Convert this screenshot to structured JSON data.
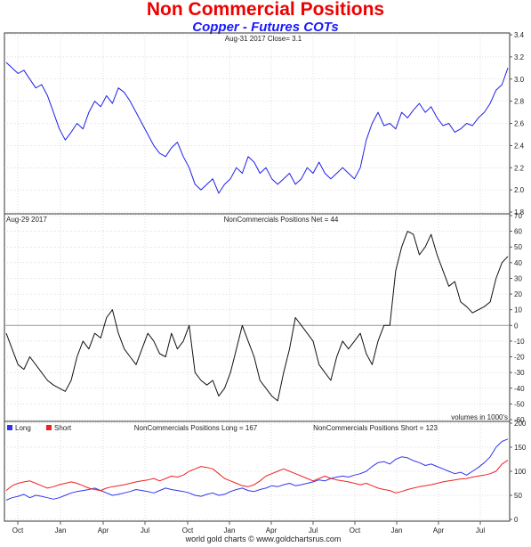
{
  "header": {
    "title": "Non Commercial Positions",
    "subtitle": "Copper - Futures COTs"
  },
  "footer": {
    "credit": "world gold charts © www.goldchartsrus.com"
  },
  "colors": {
    "price": "#1f1fe6",
    "net": "#111111",
    "long": "#3434ee",
    "short": "#ee2222",
    "grid": "#bbbbbb"
  },
  "chart_data": [
    {
      "type": "line",
      "annotation": "Aug-31  2017  Close= 3.1",
      "x_ticks": [
        "Oct",
        "Jan",
        "Apr",
        "Jul",
        "Oct",
        "Jan",
        "Apr",
        "Jul",
        "Oct",
        "Jan",
        "Apr",
        "Jul"
      ],
      "ylim": [
        1.8,
        3.4
      ],
      "y_ticks": [
        1.8,
        2.0,
        2.2,
        2.4,
        2.6,
        2.8,
        3.0,
        3.2,
        3.4
      ],
      "grid": true,
      "series": [
        {
          "values": [
            3.15,
            3.1,
            3.05,
            3.08,
            3.0,
            2.92,
            2.95,
            2.85,
            2.7,
            2.55,
            2.45,
            2.52,
            2.6,
            2.55,
            2.7,
            2.8,
            2.75,
            2.85,
            2.78,
            2.92,
            2.88,
            2.8,
            2.7,
            2.6,
            2.5,
            2.4,
            2.33,
            2.3,
            2.38,
            2.43,
            2.3,
            2.2,
            2.05,
            2.0,
            2.05,
            2.1,
            1.97,
            2.05,
            2.1,
            2.2,
            2.15,
            2.3,
            2.25,
            2.15,
            2.2,
            2.1,
            2.05,
            2.1,
            2.15,
            2.05,
            2.1,
            2.2,
            2.15,
            2.25,
            2.15,
            2.1,
            2.15,
            2.2,
            2.15,
            2.1,
            2.2,
            2.45,
            2.6,
            2.7,
            2.58,
            2.6,
            2.55,
            2.7,
            2.65,
            2.72,
            2.78,
            2.7,
            2.75,
            2.65,
            2.58,
            2.6,
            2.52,
            2.55,
            2.6,
            2.58,
            2.65,
            2.7,
            2.78,
            2.9,
            2.95,
            3.1
          ]
        }
      ]
    },
    {
      "type": "line",
      "annotation_left": "Aug-29  2017",
      "annotation": "NonCommercials Positions Net = 44",
      "note": "volumes in 1000's",
      "ylim": [
        -60,
        70
      ],
      "y_ticks": [
        -60,
        -50,
        -40,
        -30,
        -20,
        -10,
        0,
        10,
        20,
        30,
        40,
        50,
        60,
        70
      ],
      "grid": true,
      "series": [
        {
          "values": [
            -5,
            -15,
            -25,
            -28,
            -20,
            -25,
            -30,
            -35,
            -38,
            -40,
            -42,
            -35,
            -20,
            -10,
            -15,
            -5,
            -8,
            5,
            10,
            -5,
            -15,
            -20,
            -25,
            -15,
            -5,
            -10,
            -18,
            -20,
            -5,
            -15,
            -10,
            0,
            -30,
            -35,
            -38,
            -35,
            -45,
            -40,
            -30,
            -15,
            0,
            -10,
            -20,
            -35,
            -40,
            -45,
            -48,
            -30,
            -15,
            5,
            0,
            -5,
            -10,
            -25,
            -30,
            -35,
            -20,
            -10,
            -15,
            -10,
            -5,
            -18,
            -25,
            -10,
            0,
            0,
            35,
            50,
            60,
            58,
            45,
            50,
            58,
            45,
            35,
            25,
            28,
            15,
            12,
            8,
            10,
            12,
            15,
            30,
            40,
            44
          ]
        }
      ]
    },
    {
      "type": "line",
      "annotation_long": "NonCommercials Positions Long = 167",
      "annotation_short": "NonCommercials Positions Short = 123",
      "ylim": [
        0,
        200
      ],
      "y_ticks": [
        0,
        50,
        100,
        150,
        200
      ],
      "grid": true,
      "legend": "top-left",
      "series": [
        {
          "name": "Long",
          "values": [
            40,
            45,
            48,
            52,
            45,
            50,
            48,
            45,
            42,
            45,
            50,
            55,
            58,
            60,
            62,
            65,
            60,
            55,
            50,
            52,
            55,
            58,
            62,
            60,
            58,
            55,
            60,
            65,
            62,
            60,
            58,
            55,
            50,
            48,
            52,
            55,
            50,
            52,
            58,
            62,
            65,
            60,
            58,
            62,
            65,
            70,
            68,
            72,
            75,
            70,
            72,
            75,
            78,
            82,
            80,
            85,
            88,
            90,
            88,
            92,
            95,
            100,
            110,
            118,
            120,
            115,
            125,
            130,
            128,
            122,
            118,
            112,
            115,
            110,
            105,
            100,
            95,
            98,
            92,
            100,
            108,
            118,
            130,
            150,
            162,
            167
          ]
        },
        {
          "name": "Short",
          "values": [
            60,
            70,
            75,
            78,
            80,
            75,
            70,
            65,
            68,
            72,
            75,
            78,
            75,
            70,
            65,
            62,
            60,
            65,
            68,
            70,
            72,
            75,
            78,
            80,
            82,
            85,
            80,
            85,
            90,
            88,
            92,
            100,
            105,
            110,
            108,
            105,
            95,
            85,
            80,
            75,
            70,
            68,
            72,
            80,
            90,
            95,
            100,
            105,
            100,
            95,
            90,
            85,
            80,
            85,
            90,
            85,
            82,
            80,
            78,
            75,
            72,
            75,
            70,
            65,
            62,
            60,
            55,
            58,
            62,
            65,
            68,
            70,
            72,
            75,
            78,
            80,
            82,
            84,
            85,
            88,
            90,
            92,
            95,
            100,
            115,
            123
          ]
        }
      ]
    }
  ]
}
